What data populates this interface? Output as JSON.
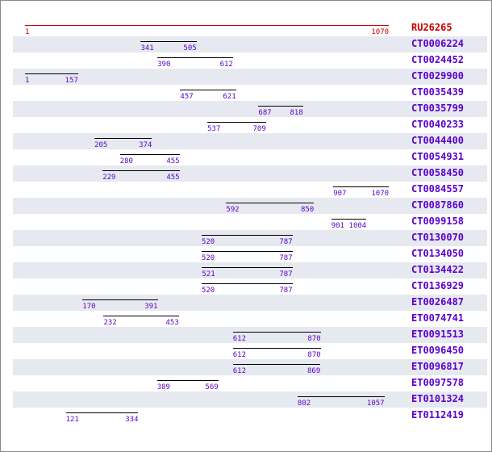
{
  "colors": {
    "reference": "#cc0000",
    "hit": "#5a00cc",
    "shade": "#e6e9ef",
    "line": "#000000"
  },
  "reference": {
    "id": "RU26265",
    "start": 1,
    "end": 1070,
    "start_label": "1",
    "end_label": "1070"
  },
  "hits": [
    {
      "id": "CT0006224",
      "start": 341,
      "end": 505,
      "start_label": "341",
      "end_label": "505"
    },
    {
      "id": "CT0024452",
      "start": 390,
      "end": 612,
      "start_label": "390",
      "end_label": "612"
    },
    {
      "id": "CT0029900",
      "start": 1,
      "end": 157,
      "start_label": "1",
      "end_label": "157"
    },
    {
      "id": "CT0035439",
      "start": 457,
      "end": 621,
      "start_label": "457",
      "end_label": "621"
    },
    {
      "id": "CT0035799",
      "start": 687,
      "end": 818,
      "start_label": "687",
      "end_label": "818"
    },
    {
      "id": "CT0040233",
      "start": 537,
      "end": 709,
      "start_label": "537",
      "end_label": "709"
    },
    {
      "id": "CT0044400",
      "start": 205,
      "end": 374,
      "start_label": "205",
      "end_label": "374"
    },
    {
      "id": "CT0054931",
      "start": 280,
      "end": 455,
      "start_label": "280",
      "end_label": "455"
    },
    {
      "id": "CT0058450",
      "start": 229,
      "end": 455,
      "start_label": "229",
      "end_label": "455"
    },
    {
      "id": "CT0084557",
      "start": 907,
      "end": 1070,
      "start_label": "907",
      "end_label": "1070"
    },
    {
      "id": "CT0087860",
      "start": 592,
      "end": 850,
      "start_label": "592",
      "end_label": "850"
    },
    {
      "id": "CT0099158",
      "start": 901,
      "end": 1004,
      "start_label": "901",
      "end_label": "1004"
    },
    {
      "id": "CT0130070",
      "start": 520,
      "end": 787,
      "start_label": "520",
      "end_label": "787"
    },
    {
      "id": "CT0134050",
      "start": 520,
      "end": 787,
      "start_label": "520",
      "end_label": "787"
    },
    {
      "id": "CT0134422",
      "start": 521,
      "end": 787,
      "start_label": "521",
      "end_label": "787"
    },
    {
      "id": "CT0136929",
      "start": 520,
      "end": 787,
      "start_label": "520",
      "end_label": "787"
    },
    {
      "id": "ET0026487",
      "start": 170,
      "end": 391,
      "start_label": "170",
      "end_label": "391"
    },
    {
      "id": "ET0074741",
      "start": 232,
      "end": 453,
      "start_label": "232",
      "end_label": "453"
    },
    {
      "id": "ET0091513",
      "start": 612,
      "end": 870,
      "start_label": "612",
      "end_label": "870"
    },
    {
      "id": "ET0096450",
      "start": 612,
      "end": 870,
      "start_label": "612",
      "end_label": "870"
    },
    {
      "id": "ET0096817",
      "start": 612,
      "end": 869,
      "start_label": "612",
      "end_label": "869"
    },
    {
      "id": "ET0097578",
      "start": 389,
      "end": 569,
      "start_label": "389",
      "end_label": "569"
    },
    {
      "id": "ET0101324",
      "start": 802,
      "end": 1057,
      "start_label": "802",
      "end_label": "1057"
    },
    {
      "id": "ET0112419",
      "start": 121,
      "end": 334,
      "start_label": "121",
      "end_label": "334"
    }
  ]
}
